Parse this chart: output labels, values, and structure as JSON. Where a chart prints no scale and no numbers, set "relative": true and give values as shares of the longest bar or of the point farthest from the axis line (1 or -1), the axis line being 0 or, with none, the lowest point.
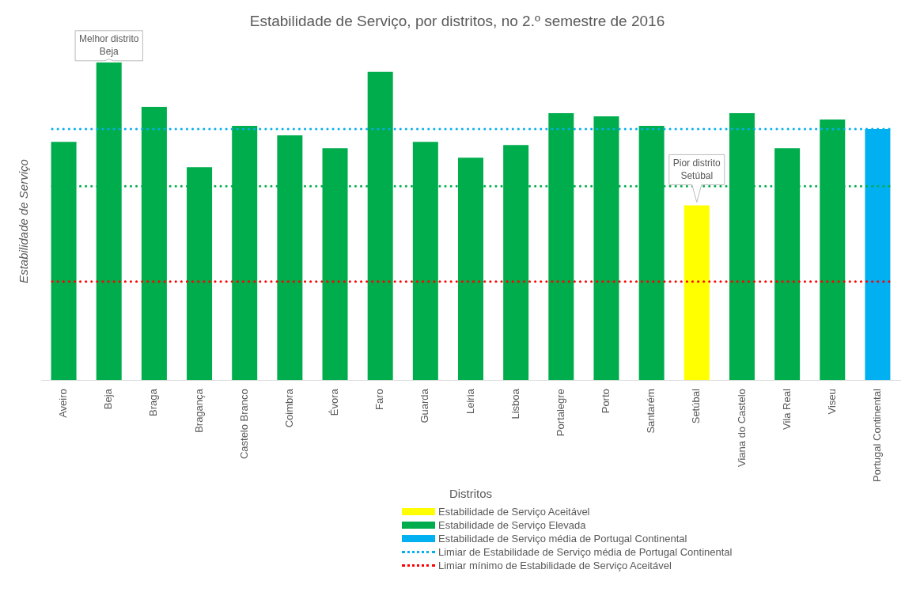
{
  "chart_data": {
    "type": "bar",
    "title": "Estabilidade de Serviço, por distritos, no 2.º semestre de 2016",
    "xlabel": "Distritos",
    "ylabel": "Estabilidade de Serviço",
    "relative": true,
    "stacked": true,
    "legend": "bottom",
    "categories": [
      "Aveiro",
      "Beja",
      "Braga",
      "Bragança",
      "Castelo Branco",
      "Coimbra",
      "Évora",
      "Faro",
      "Guarda",
      "Leiria",
      "Lisboa",
      "Portalegre",
      "Porto",
      "Santarém",
      "Setúbal",
      "Viana do Castelo",
      "Vila Real",
      "Viseu",
      "Portugal Continental"
    ],
    "series": [
      {
        "name": "Estabilidade de Serviço Aceitável",
        "color": "#ffff00",
        "values": [
          null,
          null,
          null,
          null,
          null,
          null,
          null,
          null,
          null,
          null,
          null,
          null,
          null,
          null,
          0.55,
          null,
          null,
          null,
          null
        ]
      },
      {
        "name": "Estabilidade de Serviço Elevada",
        "color": "#00ad4c",
        "values": [
          0.75,
          1,
          0.86,
          0.67,
          0.8,
          0.77,
          0.73,
          0.97,
          0.75,
          0.7,
          0.74,
          0.84,
          0.83,
          0.8,
          null,
          0.84,
          0.73,
          0.82,
          null
        ]
      },
      {
        "name": "Estabilidade de Serviço média de Portugal Continental",
        "color": "#00b0f0",
        "values": [
          null,
          null,
          null,
          null,
          null,
          null,
          null,
          null,
          null,
          null,
          null,
          null,
          null,
          null,
          null,
          null,
          null,
          null,
          0.79
        ]
      }
    ],
    "ref_lines": [
      {
        "axis": "y",
        "value": 0.79,
        "label": "Limiar de Estabilidade de Serviço média de Portugal Continental",
        "color": "#00b0f0",
        "line_style": "dotted"
      },
      {
        "axis": "y",
        "value": 0.61,
        "color": "#00ad4c",
        "line_style": "dotted"
      },
      {
        "axis": "y",
        "value": 0.31,
        "label": "Limiar mínimo de Estabilidade de Serviço Aceitável",
        "color": "#ff0000",
        "line_style": "dotted"
      }
    ],
    "annotations": [
      {
        "text": "Melhor distrito\nBeja",
        "x": "Beja",
        "y": 1
      },
      {
        "text": "Pior distrito\nSetúbal",
        "x": "Setúbal",
        "y": 0.55
      }
    ]
  }
}
